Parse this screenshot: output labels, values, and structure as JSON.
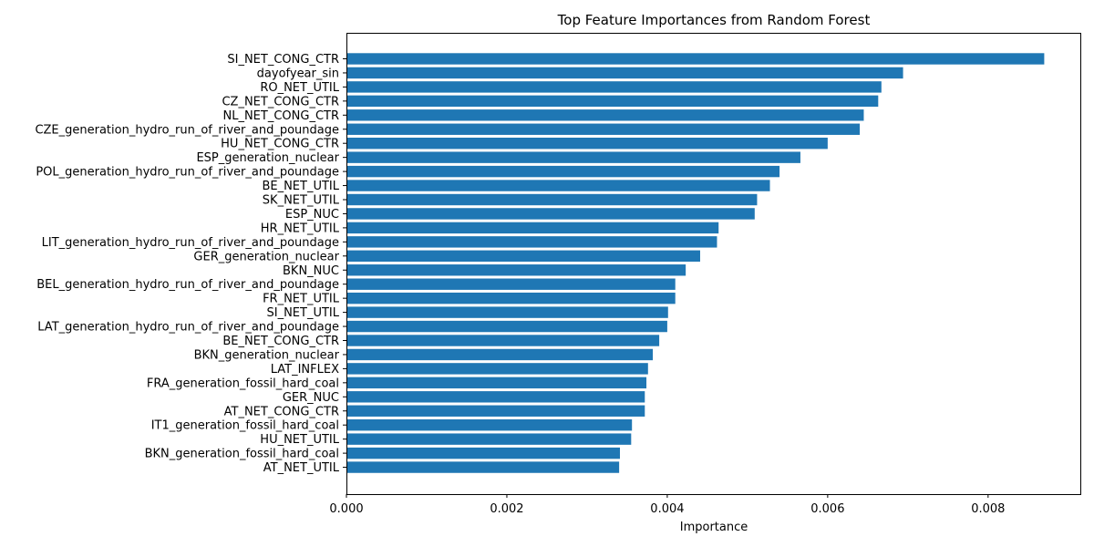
{
  "chart_data": {
    "type": "bar",
    "orientation": "horizontal",
    "title": "Top Feature Importances from Random Forest",
    "xlabel": "Importance",
    "ylabel": "",
    "xlim": [
      0,
      0.00915
    ],
    "xticks": [
      "0.000",
      "0.002",
      "0.004",
      "0.006",
      "0.008"
    ],
    "xtick_values": [
      0,
      0.002,
      0.004,
      0.006,
      0.008
    ],
    "bar_color": "#1f77b4",
    "grid": false,
    "categories": [
      "SI_NET_CONG_CTR",
      "dayofyear_sin",
      "RO_NET_UTIL",
      "CZ_NET_CONG_CTR",
      "NL_NET_CONG_CTR",
      "CZE_generation_hydro_run_of_river_and_poundage",
      "HU_NET_CONG_CTR",
      "ESP_generation_nuclear",
      "POL_generation_hydro_run_of_river_and_poundage",
      "BE_NET_UTIL",
      "SK_NET_UTIL",
      "ESP_NUC",
      "HR_NET_UTIL",
      "LIT_generation_hydro_run_of_river_and_poundage",
      "GER_generation_nuclear",
      "BKN_NUC",
      "BEL_generation_hydro_run_of_river_and_poundage",
      "FR_NET_UTIL",
      "SI_NET_UTIL",
      "LAT_generation_hydro_run_of_river_and_poundage",
      "BE_NET_CONG_CTR",
      "BKN_generation_nuclear",
      "LAT_INFLEX",
      "FRA_generation_fossil_hard_coal",
      "GER_NUC",
      "AT_NET_CONG_CTR",
      "IT1_generation_fossil_hard_coal",
      "HU_NET_UTIL",
      "BKN_generation_fossil_hard_coal",
      "AT_NET_UTIL"
    ],
    "values": [
      0.0087,
      0.00694,
      0.00667,
      0.00663,
      0.00645,
      0.0064,
      0.006,
      0.00566,
      0.0054,
      0.00528,
      0.00512,
      0.00509,
      0.00464,
      0.00462,
      0.00441,
      0.00423,
      0.0041,
      0.0041,
      0.00401,
      0.004,
      0.0039,
      0.00382,
      0.00376,
      0.00374,
      0.00372,
      0.00372,
      0.00356,
      0.00355,
      0.00341,
      0.0034
    ]
  }
}
